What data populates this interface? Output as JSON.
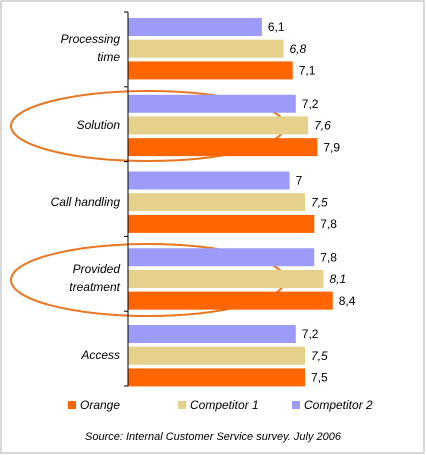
{
  "chart_data": {
    "type": "barh",
    "categories": [
      "Processing time",
      "Solution",
      "Call handling",
      "Provided treatment",
      "Access"
    ],
    "series": [
      {
        "name": "Orange",
        "color": "#ff6600",
        "values": [
          7.1,
          7.9,
          7.8,
          8.4,
          7.5
        ],
        "value_labels": [
          "7,1",
          "7,9",
          "7,8",
          "8,4",
          "7,5"
        ]
      },
      {
        "name": "Competitor 1",
        "color": "#e5d18c",
        "values": [
          6.8,
          7.6,
          7.5,
          8.1,
          7.5
        ],
        "value_labels": [
          "6,8",
          "7,6",
          "7,5",
          "8,1",
          "7,5"
        ]
      },
      {
        "name": "Competitor 2",
        "color": "#9c9cf8",
        "values": [
          6.1,
          7.2,
          7,
          7.8,
          7.2
        ],
        "value_labels": [
          "6,1",
          "7,2",
          "7",
          "7,8",
          "7,2"
        ]
      }
    ],
    "xlim": [
      1.75,
      10
    ],
    "legend": "bottom",
    "source": "Source: Internal Customer Service survey. July 2006"
  }
}
